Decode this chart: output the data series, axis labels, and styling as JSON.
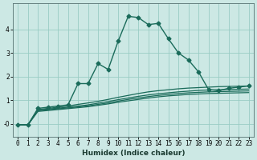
{
  "xlabel": "Humidex (Indice chaleur)",
  "ylabel": "",
  "background_color": "#cce8e4",
  "grid_color": "#99ccc4",
  "line_color": "#1a6b5a",
  "xlim": [
    -0.5,
    23.5
  ],
  "ylim": [
    -0.55,
    5.1
  ],
  "xticks": [
    0,
    1,
    2,
    3,
    4,
    5,
    6,
    7,
    8,
    9,
    10,
    11,
    12,
    13,
    14,
    15,
    16,
    17,
    18,
    19,
    20,
    21,
    22,
    23
  ],
  "yticks": [
    0,
    1,
    2,
    3,
    4
  ],
  "ytick_labels": [
    "-0",
    "1",
    "2",
    "3",
    "4"
  ],
  "series": [
    {
      "x": [
        0,
        1,
        2,
        3,
        4,
        5,
        6,
        7,
        8,
        9,
        10,
        11,
        12,
        13,
        14,
        15,
        16,
        17,
        18,
        19,
        20,
        21,
        22,
        23
      ],
      "y": [
        -0.05,
        -0.05,
        0.65,
        0.7,
        0.75,
        0.8,
        1.7,
        1.7,
        2.55,
        2.3,
        3.5,
        4.55,
        4.5,
        4.2,
        4.25,
        3.6,
        3.0,
        2.7,
        2.2,
        1.45,
        1.4,
        1.5,
        1.55,
        1.6
      ],
      "marker": "D",
      "markersize": 2.5,
      "linewidth": 1.0,
      "linestyle": "-"
    },
    {
      "x": [
        0,
        1,
        2,
        3,
        4,
        5,
        6,
        7,
        8,
        9,
        10,
        11,
        12,
        13,
        14,
        15,
        16,
        17,
        18,
        19,
        20,
        21,
        22,
        23
      ],
      "y": [
        -0.05,
        -0.05,
        0.6,
        0.65,
        0.7,
        0.75,
        0.82,
        0.88,
        0.95,
        1.03,
        1.12,
        1.2,
        1.28,
        1.35,
        1.4,
        1.44,
        1.48,
        1.51,
        1.53,
        1.55,
        1.57,
        1.58,
        1.59,
        1.6
      ],
      "marker": null,
      "markersize": 0,
      "linewidth": 0.9,
      "linestyle": "-"
    },
    {
      "x": [
        0,
        1,
        2,
        3,
        4,
        5,
        6,
        7,
        8,
        9,
        10,
        11,
        12,
        13,
        14,
        15,
        16,
        17,
        18,
        19,
        20,
        21,
        22,
        23
      ],
      "y": [
        -0.05,
        -0.05,
        0.58,
        0.62,
        0.66,
        0.7,
        0.75,
        0.8,
        0.87,
        0.94,
        1.02,
        1.09,
        1.16,
        1.22,
        1.27,
        1.31,
        1.35,
        1.38,
        1.41,
        1.43,
        1.44,
        1.45,
        1.46,
        1.47
      ],
      "marker": null,
      "markersize": 0,
      "linewidth": 0.9,
      "linestyle": "-"
    },
    {
      "x": [
        0,
        1,
        2,
        3,
        4,
        5,
        6,
        7,
        8,
        9,
        10,
        11,
        12,
        13,
        14,
        15,
        16,
        17,
        18,
        19,
        20,
        21,
        22,
        23
      ],
      "y": [
        -0.05,
        -0.05,
        0.55,
        0.59,
        0.63,
        0.67,
        0.71,
        0.76,
        0.82,
        0.88,
        0.96,
        1.03,
        1.09,
        1.15,
        1.2,
        1.24,
        1.28,
        1.31,
        1.33,
        1.35,
        1.36,
        1.37,
        1.38,
        1.39
      ],
      "marker": null,
      "markersize": 0,
      "linewidth": 0.9,
      "linestyle": "-"
    },
    {
      "x": [
        0,
        1,
        2,
        3,
        4,
        5,
        6,
        7,
        8,
        9,
        10,
        11,
        12,
        13,
        14,
        15,
        16,
        17,
        18,
        19,
        20,
        21,
        22,
        23
      ],
      "y": [
        -0.05,
        -0.05,
        0.52,
        0.56,
        0.6,
        0.64,
        0.68,
        0.72,
        0.78,
        0.84,
        0.91,
        0.97,
        1.03,
        1.09,
        1.14,
        1.18,
        1.21,
        1.24,
        1.26,
        1.28,
        1.29,
        1.3,
        1.31,
        1.32
      ],
      "marker": null,
      "markersize": 0,
      "linewidth": 0.9,
      "linestyle": "-"
    }
  ]
}
